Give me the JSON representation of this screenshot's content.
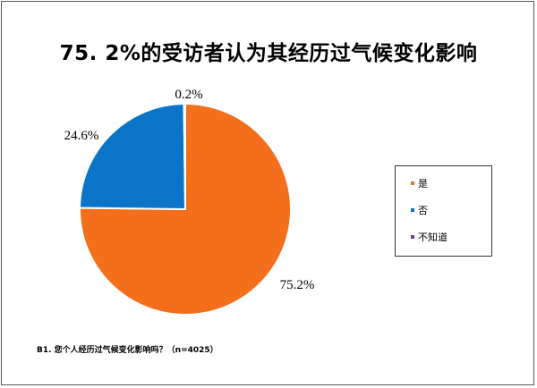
{
  "chart_data": {
    "type": "pie",
    "title": "75. 2%的受访者认为其经历过气候变化影响",
    "footnote": "B1. 您个人经历过气候变化影响吗？（n=4025）",
    "slices": [
      {
        "name": "是",
        "value": 75.2,
        "label": "75.2%",
        "color": "#f36f1b"
      },
      {
        "name": "否",
        "value": 24.6,
        "label": "24.6%",
        "color": "#0a74c9"
      },
      {
        "name": "不知道",
        "value": 0.2,
        "label": "0.2%",
        "color": "#6a3aa1"
      }
    ],
    "legend": {
      "position": "right"
    }
  }
}
